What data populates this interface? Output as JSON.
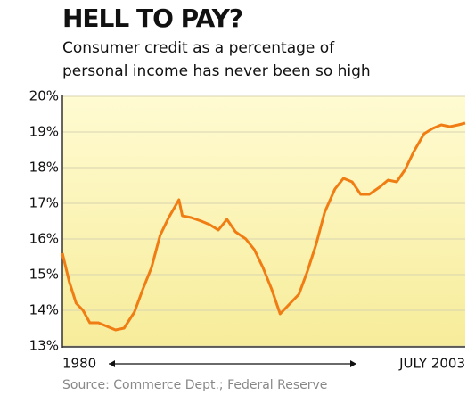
{
  "chart_data": {
    "type": "line",
    "title": "HELL TO PAY?",
    "subtitle": [
      "Consumer credit as a percentage of",
      "personal income has never been so high"
    ],
    "source": "Source: Commerce Dept.; Federal Reserve",
    "x": [
      1980.0,
      1980.4,
      1980.8,
      1981.2,
      1981.6,
      1982.1,
      1982.6,
      1983.1,
      1983.6,
      1984.2,
      1984.7,
      1985.2,
      1985.7,
      1986.2,
      1986.8,
      1987.0,
      1987.5,
      1988.1,
      1988.6,
      1989.1,
      1989.6,
      1990.1,
      1990.7,
      1991.2,
      1991.7,
      1992.2,
      1992.7,
      1993.3,
      1993.8,
      1994.3,
      1994.8,
      1995.3,
      1995.9,
      1996.4,
      1996.9,
      1997.4,
      1997.9,
      1998.5,
      1999.0,
      1999.5,
      2000.0,
      2000.5,
      2001.1,
      2001.6,
      2002.1,
      2002.6,
      2003.1,
      2003.5
    ],
    "series": [
      {
        "name": "Consumer credit",
        "color": "#f07d14",
        "values": [
          15.6,
          14.8,
          14.2,
          14.0,
          13.65,
          13.65,
          13.55,
          13.45,
          13.5,
          13.95,
          14.6,
          15.2,
          16.1,
          16.6,
          17.1,
          16.65,
          16.6,
          16.5,
          16.4,
          16.25,
          16.55,
          16.2,
          16.0,
          15.7,
          15.2,
          14.6,
          13.9,
          14.2,
          14.45,
          15.1,
          15.85,
          16.75,
          17.4,
          17.7,
          17.6,
          17.25,
          17.25,
          17.45,
          17.65,
          17.6,
          17.95,
          18.45,
          18.95,
          19.1,
          19.2,
          19.15,
          19.2,
          19.25
        ]
      }
    ],
    "xlim": [
      1980,
      2003.5
    ],
    "xticks": [
      {
        "value": 1980,
        "label": "1980"
      },
      {
        "value": 2003.5,
        "label": "JULY 2003"
      }
    ],
    "ylim": [
      13,
      20
    ],
    "yticks": [
      {
        "value": 13,
        "label": "13%"
      },
      {
        "value": 14,
        "label": "14%"
      },
      {
        "value": 15,
        "label": "15%"
      },
      {
        "value": 16,
        "label": "16%"
      },
      {
        "value": 17,
        "label": "17%"
      },
      {
        "value": 18,
        "label": "18%"
      },
      {
        "value": 19,
        "label": "19%"
      },
      {
        "value": 20,
        "label": "20%"
      }
    ],
    "grid": true
  }
}
